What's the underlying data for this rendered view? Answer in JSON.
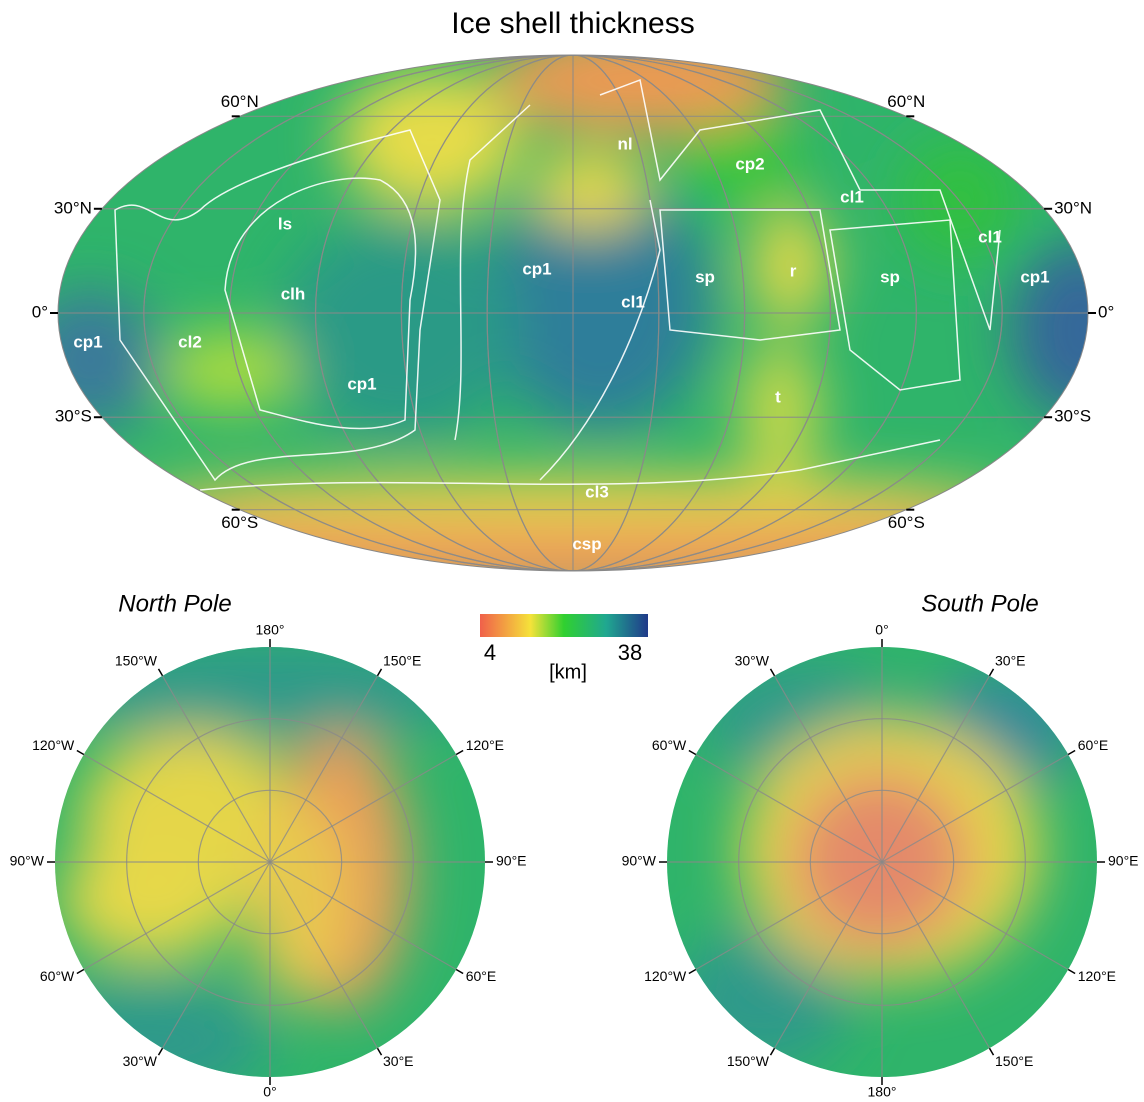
{
  "title": "Ice shell thickness",
  "global_map": {
    "latitude_labels": [
      "60°N",
      "30°N",
      "0°",
      "30°S",
      "60°S"
    ],
    "unit_labels": [
      "nl",
      "cp2",
      "cl1",
      "ls",
      "cl1",
      "cp1",
      "sp",
      "r",
      "sp",
      "cp1",
      "clh",
      "cl1",
      "cp1",
      "cl2",
      "cp1",
      "t",
      "cl3",
      "csp"
    ]
  },
  "north_pole": {
    "title": "North Pole",
    "longitude_labels": [
      "180°",
      "150°W",
      "150°E",
      "120°W",
      "120°E",
      "90°W",
      "90°E",
      "60°W",
      "60°E",
      "30°W",
      "30°E",
      "0°"
    ]
  },
  "south_pole": {
    "title": "South Pole",
    "longitude_labels": [
      "0°",
      "30°W",
      "30°E",
      "60°W",
      "60°E",
      "90°W",
      "90°E",
      "120°W",
      "120°E",
      "150°W",
      "150°E",
      "180°"
    ]
  },
  "colorbar": {
    "min": 4,
    "max": 38,
    "unit": "[km]"
  }
}
